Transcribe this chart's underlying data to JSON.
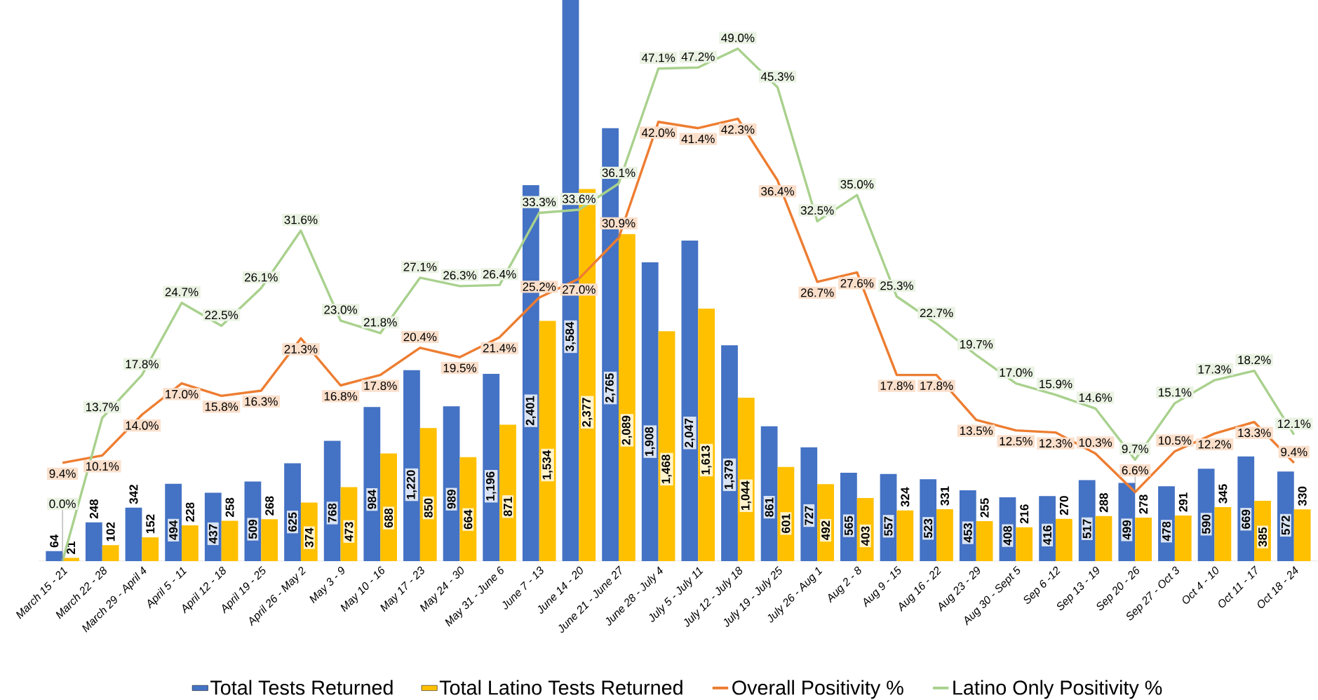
{
  "chart_data": {
    "type": "bar",
    "legend": "bottom",
    "categories": [
      "March 15 - 21",
      "March 22 - 28",
      "March 29 - April 4",
      "April 5 - 11",
      "April 12 - 18",
      "April 19 - 25",
      "April 26 - May 2",
      "May 3 - 9",
      "May 10 - 16",
      "May 17 - 23",
      "May 24 - 30",
      "May 31 - June 6",
      "June 7 - 13",
      "June 14 - 20",
      "June 21 - June 27",
      "June 28 - July 4",
      "July 5 - July 11",
      "July 12 - July 18",
      "July 19 - July 25",
      "July 26 - Aug 1",
      "Aug 2 - 8",
      "Aug 9 - 15",
      "Aug 16 - 22",
      "Aug 23 - 29",
      "Aug 30 - Sept 5",
      "Sep 6 -12",
      "Sep 13 - 19",
      "Sep 20 - 26",
      "Sep 27 - Oct 3",
      "Oct 4 - 10",
      "Oct 11 - 17",
      "Oct 18 - 24"
    ],
    "series": [
      {
        "name": "Total Tests Returned",
        "color": "#4472c4",
        "values": [
          64,
          248,
          342,
          494,
          437,
          509,
          625,
          768,
          984,
          1220,
          989,
          1196,
          2401,
          3584,
          2765,
          1908,
          2047,
          1379,
          861,
          727,
          565,
          557,
          523,
          453,
          408,
          416,
          517,
          499,
          478,
          590,
          669,
          572
        ],
        "value_labels": [
          "64",
          "248",
          "342",
          "494",
          "437",
          "509",
          "625",
          "768",
          "984",
          "1,220",
          "989",
          "1,196",
          "2,401",
          "3,584",
          "2,765",
          "1,908",
          "2,047",
          "1,379",
          "861",
          "727",
          "565",
          "557",
          "523",
          "453",
          "408",
          "416",
          "517",
          "499",
          "478",
          "590",
          "669",
          "572"
        ]
      },
      {
        "name": "Total Latino Tests Returned",
        "color": "#ffc000",
        "values": [
          21,
          102,
          152,
          228,
          258,
          268,
          374,
          473,
          688,
          850,
          664,
          871,
          1534,
          2377,
          2089,
          1468,
          1613,
          1044,
          601,
          492,
          403,
          324,
          331,
          255,
          216,
          270,
          288,
          278,
          291,
          345,
          385,
          330
        ],
        "value_labels": [
          "21",
          "102",
          "152",
          "228",
          "258",
          "268",
          "374",
          "473",
          "688",
          "850",
          "664",
          "871",
          "1,534",
          "2,377",
          "2,089",
          "1,468",
          "1,613",
          "1,044",
          "601",
          "492",
          "403",
          "324",
          "331",
          "255",
          "216",
          "270",
          "288",
          "278",
          "291",
          "345",
          "385",
          "330"
        ]
      },
      {
        "name": "Overall Positivity %",
        "type": "line",
        "axis": "y2",
        "color": "#ed7d31",
        "values": [
          9.4,
          10.1,
          14.0,
          17.0,
          15.8,
          16.3,
          21.3,
          16.8,
          17.8,
          20.4,
          19.5,
          21.4,
          25.2,
          27.0,
          30.9,
          42.0,
          41.4,
          42.3,
          36.4,
          26.7,
          27.6,
          17.8,
          17.8,
          13.5,
          12.5,
          12.3,
          10.3,
          6.6,
          10.5,
          12.2,
          13.3,
          9.4
        ],
        "value_labels": [
          "9.4%",
          "10.1%",
          "14.0%",
          "17.0%",
          "15.8%",
          "16.3%",
          "21.3%",
          "16.8%",
          "17.8%",
          "20.4%",
          "19.5%",
          "21.4%",
          "25.2%",
          "27.0%",
          "30.9%",
          "42.0%",
          "41.4%",
          "42.3%",
          "36.4%",
          "26.7%",
          "27.6%",
          "17.8%",
          "17.8%",
          "13.5%",
          "12.5%",
          "12.3%",
          "10.3%",
          "6.6%",
          "10.5%",
          "12.2%",
          "13.3%",
          "9.4%"
        ]
      },
      {
        "name": "Latino Only Positivity %",
        "type": "line",
        "axis": "y2",
        "color": "#a9d18e",
        "values": [
          0.0,
          13.7,
          17.8,
          24.7,
          22.5,
          26.1,
          31.6,
          23.0,
          21.8,
          27.1,
          26.3,
          26.4,
          33.3,
          33.6,
          36.1,
          47.1,
          47.2,
          49.0,
          45.3,
          32.5,
          35.0,
          25.3,
          22.7,
          19.7,
          17.0,
          15.9,
          14.6,
          9.7,
          15.1,
          17.3,
          18.2,
          12.1
        ],
        "value_labels": [
          "0.0%",
          "13.7%",
          "17.8%",
          "24.7%",
          "22.5%",
          "26.1%",
          "31.6%",
          "23.0%",
          "21.8%",
          "27.1%",
          "26.3%",
          "26.4%",
          "33.3%",
          "33.6%",
          "36.1%",
          "47.1%",
          "47.2%",
          "49.0%",
          "45.3%",
          "32.5%",
          "35.0%",
          "25.3%",
          "22.7%",
          "19.7%",
          "17.0%",
          "15.9%",
          "14.6%",
          "9.7%",
          "15.1%",
          "17.3%",
          "18.2%",
          "12.1%"
        ]
      }
    ]
  }
}
